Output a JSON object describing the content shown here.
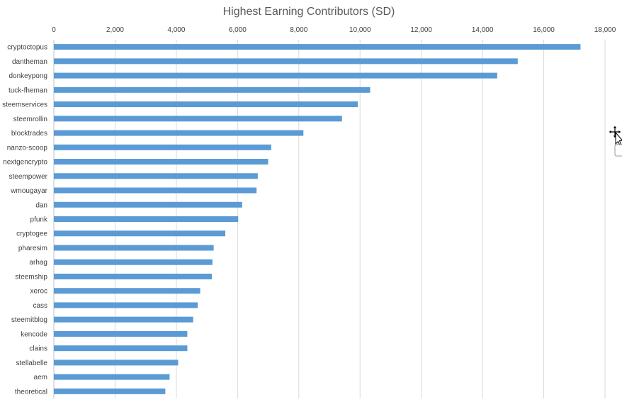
{
  "chart_data": {
    "type": "bar",
    "orientation": "horizontal",
    "title": "Highest Earning Contributors (SD)",
    "xlabel": "",
    "ylabel": "",
    "xlim": [
      0,
      18000
    ],
    "x_ticks": [
      0,
      2000,
      4000,
      6000,
      8000,
      10000,
      12000,
      14000,
      16000,
      18000
    ],
    "x_tick_labels": [
      "0",
      "2,000",
      "4,000",
      "6,000",
      "8,000",
      "10,000",
      "12,000",
      "14,000",
      "16,000",
      "18,000"
    ],
    "x_axis_position": "top",
    "grid": true,
    "legend": "none",
    "bar_color": "#5b9bd5",
    "categories": [
      "cryptoctopus",
      "dantheman",
      "donkeypong",
      "tuck-fheman",
      "steemservices",
      "steemrollin",
      "blocktrades",
      "nanzo-scoop",
      "nextgencrypto",
      "steempower",
      "wmougayar",
      "dan",
      "pfunk",
      "cryptogee",
      "pharesim",
      "arhag",
      "steemship",
      "xeroc",
      "cass",
      "steemitblog",
      "kencode",
      "clains",
      "stellabelle",
      "aem",
      "theoretical"
    ],
    "values": [
      17200,
      15150,
      14480,
      10330,
      9930,
      9410,
      8150,
      7100,
      7000,
      6660,
      6620,
      6150,
      6020,
      5600,
      5220,
      5180,
      5160,
      4780,
      4700,
      4550,
      4360,
      4360,
      4060,
      3780,
      3640
    ]
  },
  "overlay": {
    "cursor_icon": "move-cursor-icon"
  }
}
